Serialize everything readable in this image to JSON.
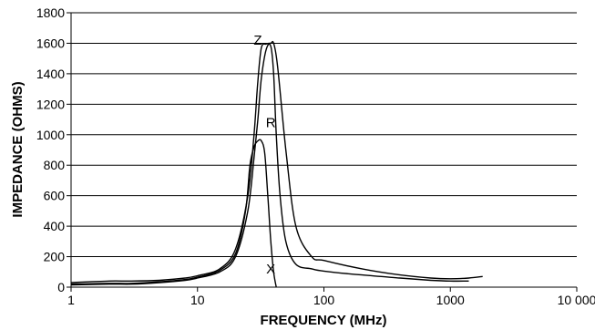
{
  "chart_data": {
    "type": "line",
    "title": "",
    "xlabel": "FREQUENCY (MHz)",
    "ylabel": "IMPEDANCE (OHMS)",
    "xscale": "log",
    "xlim": [
      1,
      10000
    ],
    "ylim": [
      0,
      1800
    ],
    "grid": "horizontal",
    "line_color": "#000000",
    "x_ticks": [
      {
        "value": 1,
        "label": "1"
      },
      {
        "value": 10,
        "label": "10"
      },
      {
        "value": 100,
        "label": "100"
      },
      {
        "value": 1000,
        "label": "1000"
      },
      {
        "value": 10000,
        "label": "10 000"
      }
    ],
    "y_ticks": [
      {
        "value": 0,
        "label": "0"
      },
      {
        "value": 200,
        "label": "200"
      },
      {
        "value": 400,
        "label": "400"
      },
      {
        "value": 600,
        "label": "600"
      },
      {
        "value": 800,
        "label": "800"
      },
      {
        "value": 1000,
        "label": "1000"
      },
      {
        "value": 1200,
        "label": "1200"
      },
      {
        "value": 1400,
        "label": "1400"
      },
      {
        "value": 1600,
        "label": "1600"
      },
      {
        "value": 1800,
        "label": "1800"
      }
    ],
    "series": [
      {
        "name": "Z",
        "label_at": {
          "x": 30,
          "y": 1590
        },
        "points": [
          [
            1,
            30
          ],
          [
            2,
            40
          ],
          [
            3,
            40
          ],
          [
            5,
            45
          ],
          [
            8,
            60
          ],
          [
            10,
            75
          ],
          [
            15,
            120
          ],
          [
            20,
            250
          ],
          [
            25,
            600
          ],
          [
            28,
            1000
          ],
          [
            30,
            1350
          ],
          [
            32,
            1570
          ],
          [
            35,
            1595
          ],
          [
            38,
            1600
          ],
          [
            40,
            1600
          ],
          [
            43,
            1450
          ],
          [
            50,
            900
          ],
          [
            60,
            400
          ],
          [
            80,
            200
          ],
          [
            100,
            175
          ],
          [
            200,
            120
          ],
          [
            400,
            80
          ],
          [
            700,
            60
          ],
          [
            1000,
            55
          ],
          [
            1400,
            60
          ],
          [
            1800,
            70
          ]
        ]
      },
      {
        "name": "R",
        "label_at": {
          "x": 38,
          "y": 1050
        },
        "points": [
          [
            1,
            15
          ],
          [
            2,
            20
          ],
          [
            3,
            20
          ],
          [
            5,
            30
          ],
          [
            8,
            45
          ],
          [
            10,
            60
          ],
          [
            15,
            100
          ],
          [
            20,
            200
          ],
          [
            25,
            500
          ],
          [
            28,
            850
          ],
          [
            30,
            1100
          ],
          [
            32,
            1370
          ],
          [
            35,
            1560
          ],
          [
            38,
            1580
          ],
          [
            40,
            1400
          ],
          [
            42,
            1000
          ],
          [
            45,
            600
          ],
          [
            50,
            300
          ],
          [
            60,
            150
          ],
          [
            80,
            120
          ],
          [
            100,
            105
          ],
          [
            200,
            80
          ],
          [
            400,
            60
          ],
          [
            700,
            45
          ],
          [
            1000,
            40
          ],
          [
            1400,
            40
          ]
        ]
      },
      {
        "name": "X",
        "label_at": {
          "x": 38,
          "y": 90
        },
        "points": [
          [
            1,
            20
          ],
          [
            2,
            25
          ],
          [
            3,
            25
          ],
          [
            5,
            35
          ],
          [
            8,
            50
          ],
          [
            10,
            65
          ],
          [
            15,
            110
          ],
          [
            20,
            220
          ],
          [
            24,
            500
          ],
          [
            26,
            800
          ],
          [
            28,
            920
          ],
          [
            30,
            960
          ],
          [
            32,
            960
          ],
          [
            34,
            880
          ],
          [
            36,
            600
          ],
          [
            38,
            300
          ],
          [
            40,
            100
          ],
          [
            42,
            0
          ]
        ]
      }
    ]
  }
}
